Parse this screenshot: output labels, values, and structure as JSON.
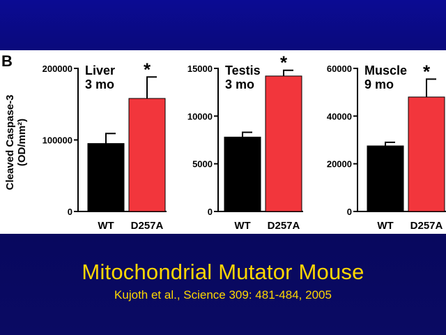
{
  "slide": {
    "title": "Mitochondrial Mutator Mouse",
    "citation": "Kujoth et al., Science 309: 481-484, 2005",
    "background_color": "#07075c",
    "text_color": "#ffd700"
  },
  "figure": {
    "panel_label": "B",
    "ylabel_line1": "Cleaved  Caspase-3",
    "ylabel_line2": "(OD/mm²)",
    "colors": {
      "WT": "#000000",
      "D257A": "#f2363c"
    }
  },
  "chart_data": [
    {
      "type": "bar",
      "title_line1": "Liver",
      "title_line2": "3 mo",
      "categories": [
        "WT",
        "D257A"
      ],
      "values": [
        95000,
        158000
      ],
      "errors": [
        14000,
        30000
      ],
      "significance": [
        "",
        "*"
      ],
      "ylim": [
        0,
        200000
      ],
      "yticks": [
        0,
        100000,
        200000
      ],
      "ytick_labels": [
        "0",
        "100000",
        "200000"
      ]
    },
    {
      "type": "bar",
      "title_line1": "Testis",
      "title_line2": "3 mo",
      "categories": [
        "WT",
        "D257A"
      ],
      "values": [
        7800,
        14200
      ],
      "errors": [
        500,
        600
      ],
      "significance": [
        "",
        "*"
      ],
      "ylim": [
        0,
        15000
      ],
      "yticks": [
        0,
        5000,
        10000,
        15000
      ],
      "ytick_labels": [
        "0",
        "5000",
        "10000",
        "15000"
      ]
    },
    {
      "type": "bar",
      "title_line1": "Muscle",
      "title_line2": "9 mo",
      "categories": [
        "WT",
        "D257A"
      ],
      "values": [
        27500,
        48000
      ],
      "errors": [
        1500,
        7500
      ],
      "significance": [
        "",
        "*"
      ],
      "ylim": [
        0,
        60000
      ],
      "yticks": [
        0,
        20000,
        40000,
        60000
      ],
      "ytick_labels": [
        "0",
        "20000",
        "40000",
        "60000"
      ]
    }
  ]
}
